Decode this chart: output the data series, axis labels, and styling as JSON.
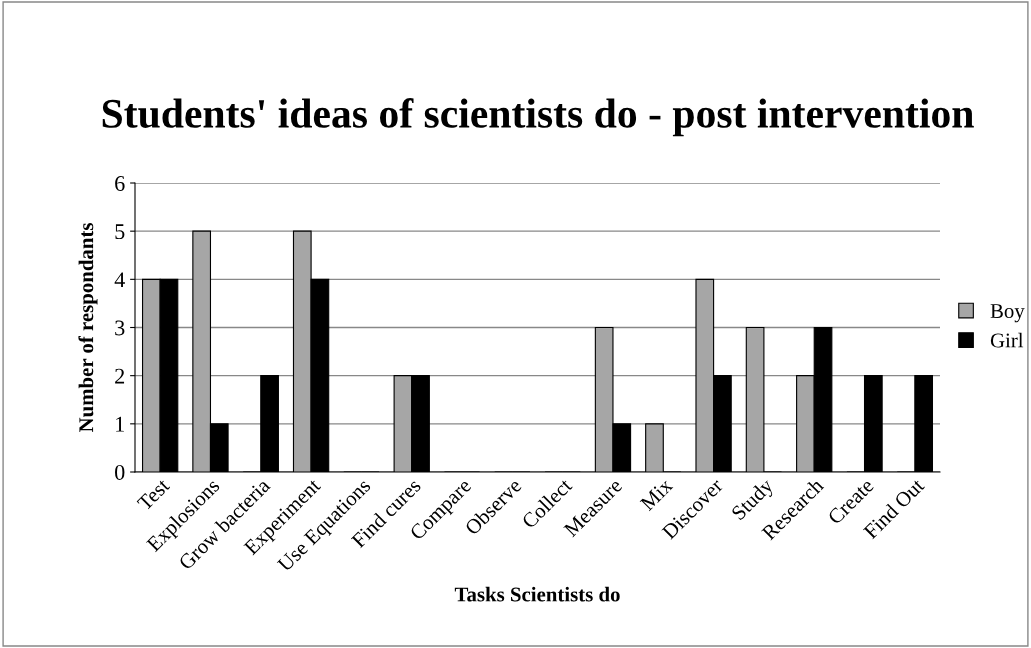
{
  "chart_data": {
    "type": "bar",
    "title": "Students' ideas of scientists do - post intervention",
    "xlabel": "Tasks Scientists do",
    "ylabel": "Number of respondants",
    "categories": [
      "Test",
      "Explosions",
      "Grow bacteria",
      "Experiment",
      "Use Equations",
      "Find cures",
      "Compare",
      "Observe",
      "Collect",
      "Measure",
      "Mix",
      "Discover",
      "Study",
      "Research",
      "Create",
      "Find Out"
    ],
    "series": [
      {
        "name": "Boy",
        "color": "#a6a6a6",
        "values": [
          4,
          5,
          0,
          5,
          0,
          2,
          0,
          0,
          0,
          3,
          1,
          4,
          3,
          2,
          0,
          0
        ]
      },
      {
        "name": "Girl",
        "color": "#000000",
        "values": [
          4,
          1,
          2,
          4,
          0,
          2,
          0,
          0,
          0,
          1,
          0,
          2,
          0,
          3,
          2,
          2
        ]
      }
    ],
    "ylim": [
      0,
      6
    ],
    "yticks": [
      0,
      1,
      2,
      3,
      4,
      5,
      6
    ],
    "grid": "y",
    "legend": "right"
  }
}
